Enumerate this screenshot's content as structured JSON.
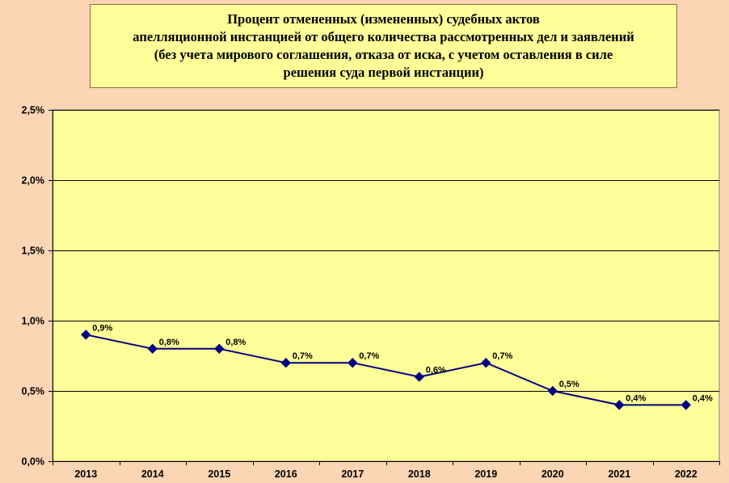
{
  "chart_data": {
    "type": "line",
    "title": "Процент отмененных (измененных) судебных актов\nапелляционной инстанцией от общего количества рассмотренных дел и заявлений\n(без учета мирового соглашения, отказа от иска, с учетом оставления в силе\nрешения суда первой инстанции)",
    "categories": [
      "2013",
      "2014",
      "2015",
      "2016",
      "2017",
      "2018",
      "2019",
      "2020",
      "2021",
      "2022"
    ],
    "values": [
      0.9,
      0.8,
      0.8,
      0.7,
      0.7,
      0.6,
      0.7,
      0.5,
      0.4,
      0.4
    ],
    "data_labels": [
      "0,9%",
      "0,8%",
      "0,8%",
      "0,7%",
      "0,7%",
      "0,6%",
      "0,7%",
      "0,5%",
      "0,4%",
      "0,4%"
    ],
    "y_ticks": [
      0,
      0.5,
      1.0,
      1.5,
      2.0,
      2.5
    ],
    "y_tick_labels": [
      "0,0%",
      "0,5%",
      "1,0%",
      "1,5%",
      "2,0%",
      "2,5%"
    ],
    "ylim": [
      0,
      2.5
    ],
    "grid": true,
    "legend": "none",
    "colors": {
      "page_background": "#fcd5b4",
      "plot_background": "#ffff99",
      "title_background": "#ffff99",
      "line": "#000080",
      "marker": "#000080",
      "gridline": "#000000"
    },
    "marker": "diamond"
  }
}
